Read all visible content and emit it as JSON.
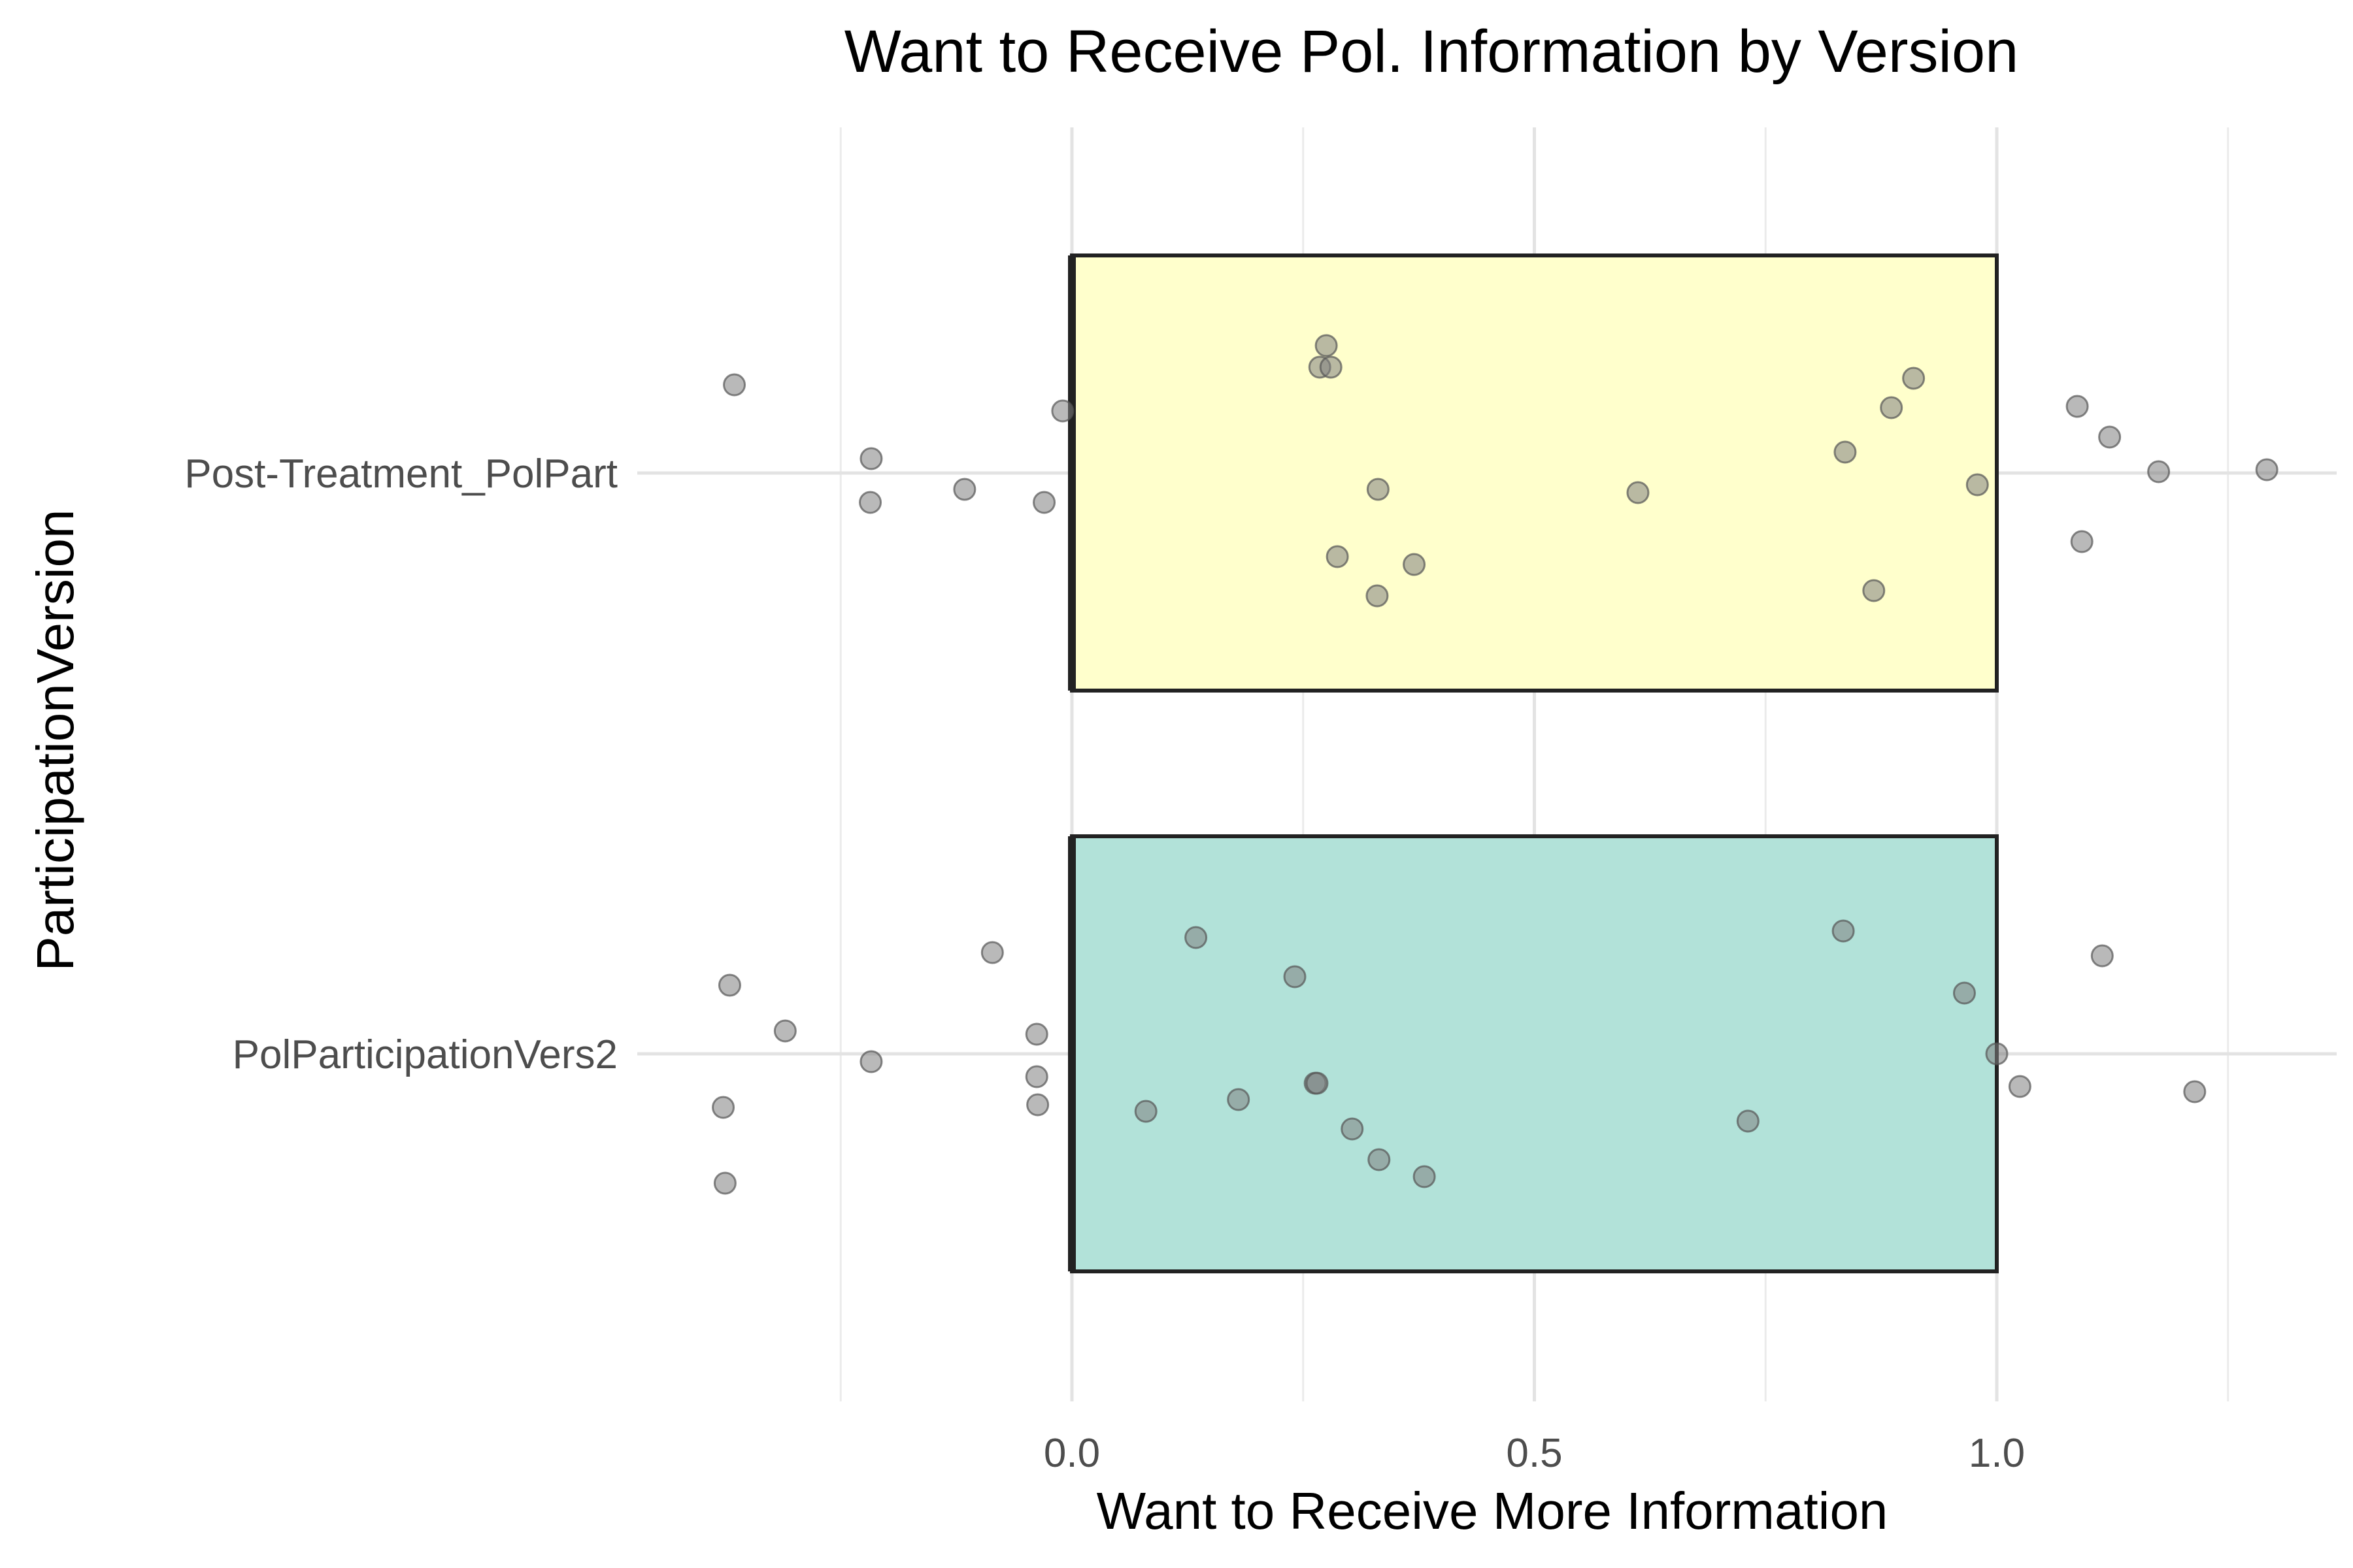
{
  "chart_data": {
    "type": "bar",
    "orientation": "horizontal",
    "title": "Want to Receive Pol. Information by Version",
    "xlabel": "Want to Receive More Information",
    "ylabel": "ParticipationVersion",
    "xlim": [
      -0.5,
      1.37
    ],
    "x_ticks": [
      {
        "value": 0.0,
        "label": "0.0"
      },
      {
        "value": 0.5,
        "label": "0.5"
      },
      {
        "value": 1.0,
        "label": "1.0"
      }
    ],
    "minor_gridlines": [
      -0.25,
      0.25,
      0.75,
      1.25
    ],
    "grid": true,
    "legend": "none",
    "categories": [
      "Post-Treatment_PolPart",
      "PolParticipationVers2"
    ],
    "values": [
      1.0,
      1.0
    ],
    "bar_colors": [
      "#ffffcc",
      "#b2e2d9"
    ],
    "bar_border_color": "#222222",
    "point_color": "#808080",
    "jitter_points": [
      {
        "category": "Post-Treatment_PolPart",
        "points": [
          {
            "x": -0.365,
            "y": 0.135
          },
          {
            "x": -0.217,
            "y": 0.022
          },
          {
            "x": -0.218,
            "y": -0.045
          },
          {
            "x": -0.116,
            "y": -0.025
          },
          {
            "x": -0.03,
            "y": -0.045
          },
          {
            "x": -0.01,
            "y": 0.095
          },
          {
            "x": 0.275,
            "y": 0.195
          },
          {
            "x": 0.268,
            "y": 0.162
          },
          {
            "x": 0.28,
            "y": 0.162
          },
          {
            "x": 0.331,
            "y": -0.025
          },
          {
            "x": 0.287,
            "y": -0.128
          },
          {
            "x": 0.37,
            "y": -0.14
          },
          {
            "x": 0.33,
            "y": -0.188
          },
          {
            "x": 0.612,
            "y": -0.03
          },
          {
            "x": 0.836,
            "y": 0.032
          },
          {
            "x": 0.886,
            "y": 0.1
          },
          {
            "x": 0.91,
            "y": 0.145
          },
          {
            "x": 0.979,
            "y": -0.018
          },
          {
            "x": 0.867,
            "y": -0.18
          },
          {
            "x": 1.087,
            "y": 0.102
          },
          {
            "x": 1.122,
            "y": 0.055
          },
          {
            "x": 1.175,
            "y": 0.002
          },
          {
            "x": 1.292,
            "y": 0.005
          },
          {
            "x": 1.092,
            "y": -0.105
          }
        ]
      },
      {
        "category": "PolParticipationVers2",
        "points": [
          {
            "x": -0.37,
            "y": 0.105
          },
          {
            "x": -0.31,
            "y": 0.035
          },
          {
            "x": -0.217,
            "y": -0.012
          },
          {
            "x": -0.377,
            "y": -0.082
          },
          {
            "x": -0.375,
            "y": -0.198
          },
          {
            "x": -0.086,
            "y": 0.155
          },
          {
            "x": -0.038,
            "y": 0.03
          },
          {
            "x": -0.038,
            "y": -0.035
          },
          {
            "x": -0.037,
            "y": -0.078
          },
          {
            "x": 0.134,
            "y": 0.178
          },
          {
            "x": 0.241,
            "y": 0.118
          },
          {
            "x": 0.263,
            "y": -0.045
          },
          {
            "x": 0.265,
            "y": -0.045
          },
          {
            "x": 0.08,
            "y": -0.088
          },
          {
            "x": 0.18,
            "y": -0.07
          },
          {
            "x": 0.303,
            "y": -0.115
          },
          {
            "x": 0.332,
            "y": -0.162
          },
          {
            "x": 0.381,
            "y": -0.188
          },
          {
            "x": 0.731,
            "y": -0.103
          },
          {
            "x": 0.834,
            "y": 0.188
          },
          {
            "x": 0.965,
            "y": 0.093
          },
          {
            "x": 1.0,
            "y": 0.0
          },
          {
            "x": 1.025,
            "y": -0.05
          },
          {
            "x": 1.114,
            "y": 0.15
          },
          {
            "x": 1.214,
            "y": -0.058
          }
        ]
      }
    ]
  }
}
